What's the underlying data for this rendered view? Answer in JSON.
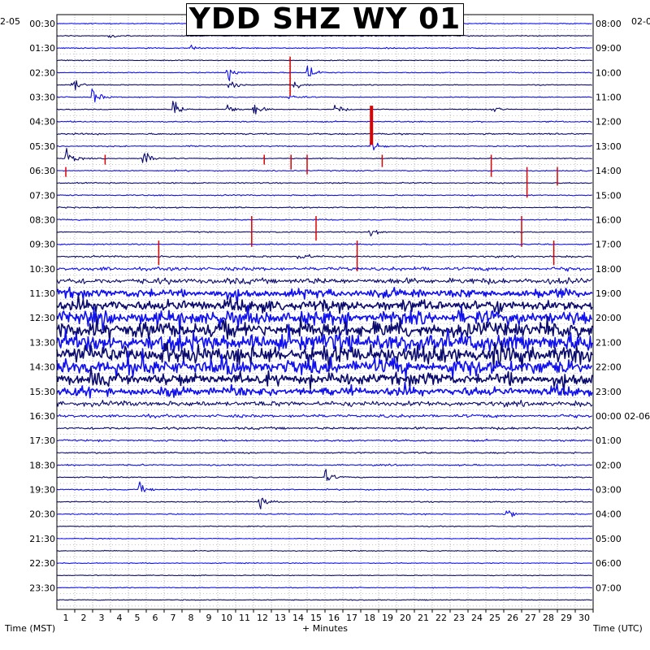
{
  "chart_data": {
    "type": "line",
    "title": "YDD SHZ WY 01",
    "xlabel": "+ Minutes",
    "left_axis_label": "Time (MST)",
    "right_axis_label": "Time (UTC)",
    "xlim": [
      0,
      30
    ],
    "x_ticks": [
      "1",
      "2",
      "3",
      "4",
      "5",
      "6",
      "7",
      "8",
      "9",
      "10",
      "11",
      "12",
      "13",
      "14",
      "15",
      "16",
      "17",
      "18",
      "19",
      "20",
      "21",
      "22",
      "23",
      "24",
      "25",
      "26",
      "27",
      "28",
      "29",
      "30"
    ],
    "left_date_label": "2-05",
    "right_date_label": "02-0",
    "left_time_labels": [
      "00:30",
      "01:30",
      "02:30",
      "03:30",
      "04:30",
      "05:30",
      "06:30",
      "07:30",
      "08:30",
      "09:30",
      "10:30",
      "11:30",
      "12:30",
      "13:30",
      "14:30",
      "15:30",
      "16:30",
      "17:30",
      "18:30",
      "19:30",
      "20:30",
      "21:30",
      "22:30",
      "23:30"
    ],
    "right_time_labels": [
      "08:00",
      "09:00",
      "10:00",
      "11:00",
      "12:00",
      "13:00",
      "14:00",
      "15:00",
      "16:00",
      "17:00",
      "18:00",
      "19:00",
      "20:00",
      "21:00",
      "22:00",
      "23:00",
      "00:00 02-06",
      "01:00",
      "02:00",
      "03:00",
      "04:00",
      "05:00",
      "06:00",
      "07:00"
    ],
    "trace_count": 48,
    "trace_minutes": 30,
    "colors": {
      "dark_trace": "#0b0b6e",
      "blue_trace": "#1010ee",
      "event_marker": "#dd0000",
      "grid": "#8a8a8a"
    },
    "noise_level": [
      0.15,
      0.15,
      0.2,
      0.15,
      0.15,
      0.15,
      0.15,
      0.15,
      0.2,
      0.25,
      0.2,
      0.2,
      0.2,
      0.2,
      0.2,
      0.2,
      0.2,
      0.2,
      0.2,
      0.3,
      0.6,
      1.0,
      1.4,
      1.8,
      2.2,
      2.6,
      2.8,
      2.8,
      2.4,
      2.0,
      1.4,
      0.9,
      0.5,
      0.4,
      0.3,
      0.25,
      0.25,
      0.2,
      0.2,
      0.2,
      0.2,
      0.15,
      0.15,
      0.15,
      0.15,
      0.15,
      0.15,
      0.15
    ],
    "events": [
      {
        "trace": 1,
        "minute": 2.8,
        "amp": 3
      },
      {
        "trace": 2,
        "minute": 7.5,
        "amp": 3
      },
      {
        "trace": 4,
        "minute": 9.5,
        "amp": 8
      },
      {
        "trace": 4,
        "minute": 14.0,
        "amp": 8
      },
      {
        "trace": 5,
        "minute": 0.8,
        "amp": 8
      },
      {
        "trace": 5,
        "minute": 9.6,
        "amp": 6
      },
      {
        "trace": 5,
        "minute": 13.3,
        "amp": 5
      },
      {
        "trace": 6,
        "minute": 2.0,
        "amp": 10
      },
      {
        "trace": 6,
        "minute": 13.0,
        "amp": 4
      },
      {
        "trace": 7,
        "minute": 6.5,
        "amp": 10
      },
      {
        "trace": 7,
        "minute": 9.5,
        "amp": 6
      },
      {
        "trace": 7,
        "minute": 11.0,
        "amp": 8
      },
      {
        "trace": 7,
        "minute": 15.5,
        "amp": 7
      },
      {
        "trace": 7,
        "minute": 24.3,
        "amp": 4
      },
      {
        "trace": 10,
        "minute": 17.6,
        "amp": 6
      },
      {
        "trace": 11,
        "minute": 0.5,
        "amp": 8
      },
      {
        "trace": 11,
        "minute": 4.8,
        "amp": 8
      },
      {
        "trace": 17,
        "minute": 17.5,
        "amp": 8
      },
      {
        "trace": 19,
        "minute": 13.5,
        "amp": 6
      },
      {
        "trace": 37,
        "minute": 15.0,
        "amp": 6
      },
      {
        "trace": 38,
        "minute": 4.6,
        "amp": 6
      },
      {
        "trace": 39,
        "minute": 11.3,
        "amp": 6
      },
      {
        "trace": 40,
        "minute": 25.1,
        "amp": 5
      }
    ],
    "markers": [
      {
        "trace": 3,
        "minute": 13.05,
        "length_traces": 3.2,
        "width": 1.5
      },
      {
        "trace": 7,
        "minute": 17.6,
        "length_traces": 3.2,
        "width": 4
      },
      {
        "trace": 11,
        "minute": 2.7,
        "length_traces": 0.8,
        "width": 1.5
      },
      {
        "trace": 11,
        "minute": 11.6,
        "length_traces": 0.8,
        "width": 1.5
      },
      {
        "trace": 11,
        "minute": 13.1,
        "length_traces": 1.2,
        "width": 1.5
      },
      {
        "trace": 11,
        "minute": 14.0,
        "length_traces": 1.6,
        "width": 1.5
      },
      {
        "trace": 11,
        "minute": 18.2,
        "length_traces": 1.0,
        "width": 1.5
      },
      {
        "trace": 11,
        "minute": 24.3,
        "length_traces": 1.8,
        "width": 1.5
      },
      {
        "trace": 12,
        "minute": 0.5,
        "length_traces": 0.8,
        "width": 1.5
      },
      {
        "trace": 12,
        "minute": 26.3,
        "length_traces": 2.5,
        "width": 1.5
      },
      {
        "trace": 12,
        "minute": 28.0,
        "length_traces": 1.5,
        "width": 1.5
      },
      {
        "trace": 16,
        "minute": 10.9,
        "length_traces": 2.5,
        "width": 1.5
      },
      {
        "trace": 16,
        "minute": 14.5,
        "length_traces": 2.0,
        "width": 1.5
      },
      {
        "trace": 16,
        "minute": 26.0,
        "length_traces": 2.5,
        "width": 1.5
      },
      {
        "trace": 18,
        "minute": 5.7,
        "length_traces": 2.0,
        "width": 1.5
      },
      {
        "trace": 18,
        "minute": 16.8,
        "length_traces": 2.5,
        "width": 1.5
      },
      {
        "trace": 18,
        "minute": 27.8,
        "length_traces": 2.0,
        "width": 1.5
      }
    ]
  }
}
